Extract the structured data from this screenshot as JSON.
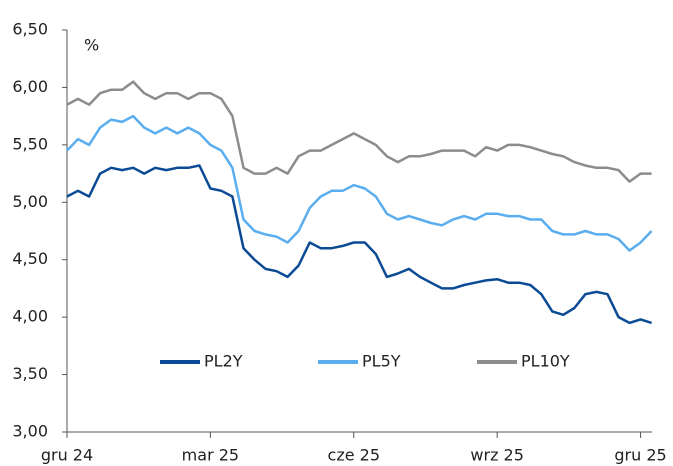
{
  "chart_data": {
    "type": "line",
    "y_unit": "%",
    "categories": [
      "gru 24",
      null,
      null,
      null,
      null,
      null,
      null,
      null,
      null,
      null,
      null,
      null,
      null,
      "mar 25",
      null,
      null,
      null,
      null,
      null,
      null,
      null,
      null,
      null,
      null,
      null,
      null,
      "cze 25",
      null,
      null,
      null,
      null,
      null,
      null,
      null,
      null,
      null,
      null,
      null,
      null,
      "wrz 25",
      null,
      null,
      null,
      null,
      null,
      null,
      null,
      null,
      null,
      null,
      null,
      null,
      "gru 25",
      null
    ],
    "series": [
      {
        "name": "PL2Y",
        "color": "#0b4a94",
        "values": [
          5.05,
          5.1,
          5.05,
          5.25,
          5.3,
          5.28,
          5.3,
          5.25,
          5.3,
          5.28,
          5.3,
          5.3,
          5.32,
          5.12,
          5.1,
          5.05,
          4.6,
          4.5,
          4.42,
          4.4,
          4.35,
          4.45,
          4.65,
          4.6,
          4.6,
          4.62,
          4.65,
          4.65,
          4.55,
          4.35,
          4.38,
          4.42,
          4.35,
          4.3,
          4.25,
          4.25,
          4.28,
          4.3,
          4.32,
          4.33,
          4.3,
          4.3,
          4.28,
          4.2,
          4.05,
          4.02,
          4.08,
          4.2,
          4.22,
          4.2,
          4.0,
          3.95,
          3.98,
          3.95
        ]
      },
      {
        "name": "PL5Y",
        "color": "#5aaef0",
        "values": [
          5.45,
          5.55,
          5.5,
          5.65,
          5.72,
          5.7,
          5.75,
          5.65,
          5.6,
          5.65,
          5.6,
          5.65,
          5.6,
          5.5,
          5.45,
          5.3,
          4.85,
          4.75,
          4.72,
          4.7,
          4.65,
          4.75,
          4.95,
          5.05,
          5.1,
          5.1,
          5.15,
          5.12,
          5.05,
          4.9,
          4.85,
          4.88,
          4.85,
          4.82,
          4.8,
          4.85,
          4.88,
          4.85,
          4.9,
          4.9,
          4.88,
          4.88,
          4.85,
          4.85,
          4.75,
          4.72,
          4.72,
          4.75,
          4.72,
          4.72,
          4.68,
          4.58,
          4.65,
          4.75
        ]
      },
      {
        "name": "PL10Y",
        "color": "#8c8c8c",
        "values": [
          5.85,
          5.9,
          5.85,
          5.95,
          5.98,
          5.98,
          6.05,
          5.95,
          5.9,
          5.95,
          5.95,
          5.9,
          5.95,
          5.95,
          5.9,
          5.75,
          5.3,
          5.25,
          5.25,
          5.3,
          5.25,
          5.4,
          5.45,
          5.45,
          5.5,
          5.55,
          5.6,
          5.55,
          5.5,
          5.4,
          5.35,
          5.4,
          5.4,
          5.42,
          5.45,
          5.45,
          5.45,
          5.4,
          5.48,
          5.45,
          5.5,
          5.5,
          5.48,
          5.45,
          5.42,
          5.4,
          5.35,
          5.32,
          5.3,
          5.3,
          5.28,
          5.18,
          5.25,
          5.25
        ]
      }
    ],
    "ylim": [
      3.0,
      6.5
    ],
    "yticks": [
      {
        "value": 3.0,
        "label": "3,00"
      },
      {
        "value": 3.5,
        "label": "3,50"
      },
      {
        "value": 4.0,
        "label": "4,00"
      },
      {
        "value": 4.5,
        "label": "4,50"
      },
      {
        "value": 5.0,
        "label": "5,00"
      },
      {
        "value": 5.5,
        "label": "5,50"
      },
      {
        "value": 6.0,
        "label": "6,00"
      },
      {
        "value": 6.5,
        "label": "6,50"
      }
    ],
    "grid": false,
    "legend": "lower center"
  }
}
